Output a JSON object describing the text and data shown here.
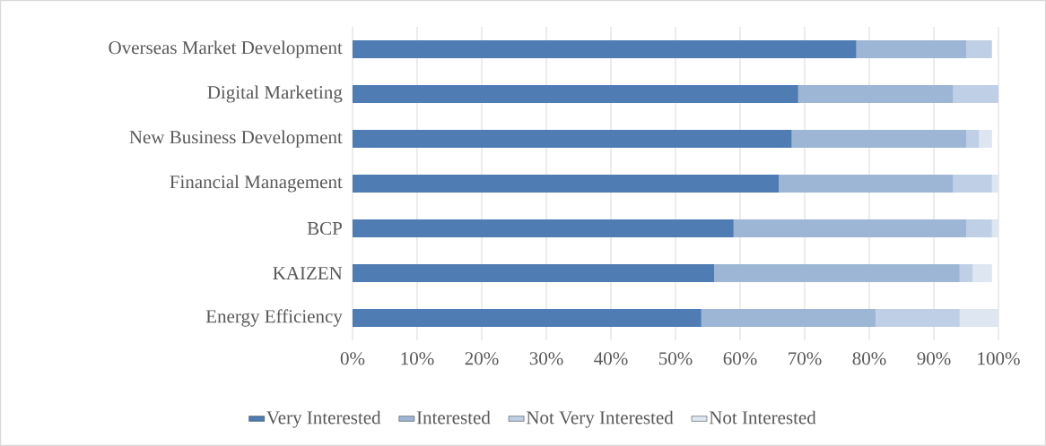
{
  "chart_data": {
    "type": "bar",
    "orientation": "horizontal",
    "stacked": true,
    "categories": [
      "Overseas Market Development",
      "Digital Marketing",
      "New Business Development",
      "Financial Management",
      "BCP",
      "KAIZEN",
      "Energy Efficiency"
    ],
    "series": [
      {
        "name": "Very Interested",
        "color": "#4f7db3",
        "values": [
          78,
          69,
          68,
          66,
          59,
          56,
          54
        ]
      },
      {
        "name": "Interested",
        "color": "#9db6d6",
        "values": [
          17,
          24,
          27,
          27,
          36,
          38,
          27
        ]
      },
      {
        "name": "Not Very Interested",
        "color": "#bfd0e6",
        "values": [
          4,
          7,
          2,
          6,
          4,
          2,
          13
        ]
      },
      {
        "name": "Not Interested",
        "color": "#dde6f1",
        "values": [
          0,
          0,
          2,
          1,
          1,
          3,
          6
        ]
      }
    ],
    "xlim": [
      0,
      100
    ],
    "xticks": [
      {
        "value": 0,
        "label": "0%"
      },
      {
        "value": 10,
        "label": "10%"
      },
      {
        "value": 20,
        "label": "20%"
      },
      {
        "value": 30,
        "label": "30%"
      },
      {
        "value": 40,
        "label": "40%"
      },
      {
        "value": 50,
        "label": "50%"
      },
      {
        "value": 60,
        "label": "60%"
      },
      {
        "value": 70,
        "label": "70%"
      },
      {
        "value": 80,
        "label": "80%"
      },
      {
        "value": 90,
        "label": "90%"
      },
      {
        "value": 100,
        "label": "100%"
      }
    ],
    "grid": "x",
    "legend": "bottom"
  }
}
